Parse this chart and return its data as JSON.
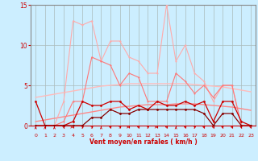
{
  "xlabel": "Vent moyen/en rafales ( km/h )",
  "background_color": "#cceeff",
  "grid_color": "#aabbbb",
  "x_values": [
    0,
    1,
    2,
    3,
    4,
    5,
    6,
    7,
    8,
    9,
    10,
    11,
    12,
    13,
    14,
    15,
    16,
    17,
    18,
    19,
    20,
    21,
    22,
    23
  ],
  "line_max_y": [
    0.0,
    0.0,
    0.0,
    3.0,
    13.0,
    12.5,
    13.0,
    8.0,
    10.5,
    10.5,
    8.5,
    8.0,
    6.5,
    6.5,
    15.0,
    8.0,
    10.0,
    6.5,
    5.5,
    3.0,
    5.0,
    5.0,
    0.0,
    0.0
  ],
  "line_p90_y": [
    0.0,
    0.0,
    0.0,
    0.5,
    3.0,
    3.0,
    8.5,
    8.0,
    7.5,
    5.0,
    6.5,
    6.0,
    3.0,
    3.0,
    3.0,
    6.5,
    5.5,
    4.0,
    5.0,
    3.5,
    5.0,
    5.0,
    0.0,
    0.0
  ],
  "line_avg_y": [
    3.0,
    0.0,
    0.0,
    0.0,
    0.5,
    3.0,
    2.5,
    2.5,
    3.0,
    3.0,
    2.0,
    2.5,
    2.0,
    3.0,
    2.5,
    2.5,
    3.0,
    2.5,
    3.0,
    0.5,
    3.0,
    3.0,
    0.5,
    0.0
  ],
  "line_med_y": [
    0.0,
    0.0,
    0.0,
    0.0,
    0.0,
    0.0,
    1.0,
    1.0,
    2.0,
    1.5,
    1.5,
    2.0,
    2.0,
    2.0,
    2.0,
    2.0,
    2.0,
    2.0,
    1.5,
    0.0,
    1.5,
    1.5,
    0.0,
    0.0
  ],
  "line_trend1_y": [
    3.5,
    3.7,
    3.9,
    4.1,
    4.3,
    4.5,
    4.7,
    4.9,
    5.0,
    5.1,
    5.2,
    5.2,
    5.2,
    5.2,
    5.2,
    5.2,
    5.2,
    5.1,
    5.0,
    4.9,
    4.8,
    4.6,
    4.4,
    4.2
  ],
  "line_trend2_y": [
    0.5,
    0.7,
    0.9,
    1.1,
    1.3,
    1.5,
    1.7,
    1.9,
    2.1,
    2.3,
    2.4,
    2.5,
    2.6,
    2.6,
    2.6,
    2.7,
    2.7,
    2.7,
    2.6,
    2.5,
    2.4,
    2.3,
    2.1,
    1.9
  ],
  "ylim": [
    0,
    15
  ],
  "xlim": [
    -0.5,
    23.5
  ],
  "yticks": [
    0,
    5,
    10,
    15
  ],
  "xticks": [
    0,
    1,
    2,
    3,
    4,
    5,
    6,
    7,
    8,
    9,
    10,
    11,
    12,
    13,
    14,
    15,
    16,
    17,
    18,
    19,
    20,
    21,
    22,
    23
  ],
  "color_max": "#ffaaaa",
  "color_p90": "#ff7777",
  "color_avg": "#cc0000",
  "color_med": "#880000",
  "color_trend1": "#ffbbbb",
  "color_trend2": "#ff8888",
  "arrow_color": "#cc0000",
  "arrow_directions": [
    90,
    90,
    90,
    120,
    0,
    45,
    45,
    90,
    135,
    45,
    0,
    135,
    45,
    0,
    135,
    90,
    135,
    45,
    135,
    135,
    135,
    135,
    135,
    135
  ]
}
